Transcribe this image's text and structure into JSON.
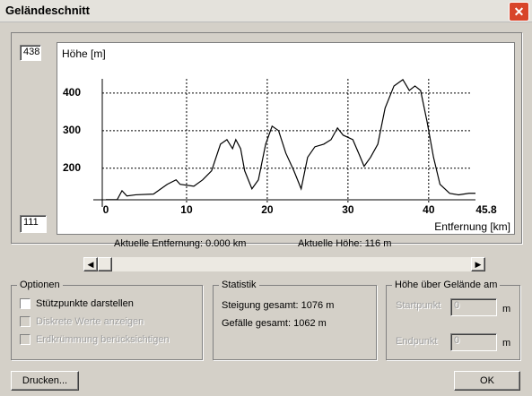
{
  "window": {
    "title": "Geländeschnitt"
  },
  "chart_data": {
    "type": "line",
    "y_label": "Höhe [m]",
    "x_label": "Entfernung [km]",
    "x": [
      0,
      1.4,
      2,
      2.6,
      3.7,
      5.9,
      7.6,
      8.7,
      9.2,
      10.9,
      12,
      13.1,
      14.2,
      15,
      15.7,
      16.1,
      16.7,
      17.2,
      18.1,
      18.9,
      19.8,
      20.6,
      21.4,
      22.3,
      23.3,
      24.2,
      25,
      25.9,
      27,
      27.9,
      28.7,
      29.4,
      30.6,
      31.4,
      32,
      32.8,
      33.7,
      34.6,
      35.7,
      36.8,
      37.6,
      38.3,
      39,
      39.8,
      40.6,
      41.4,
      42.6,
      43.7,
      45,
      45.8
    ],
    "values": [
      116,
      116,
      140,
      126,
      129,
      131,
      157,
      169,
      157,
      152,
      169,
      193,
      264,
      276,
      252,
      276,
      252,
      193,
      145,
      169,
      264,
      312,
      300,
      240,
      193,
      145,
      229,
      257,
      264,
      276,
      307,
      288,
      276,
      236,
      205,
      229,
      264,
      360,
      419,
      436,
      407,
      419,
      407,
      324,
      229,
      157,
      133,
      129,
      133,
      133
    ],
    "color": "#000000",
    "ylim": [
      111,
      438
    ],
    "yticks": [
      200,
      300,
      400
    ],
    "xlim": [
      0,
      45.8
    ],
    "xticks": [
      0,
      10,
      20,
      30,
      40,
      45.8
    ],
    "grid": true
  },
  "status": {
    "distance": "Aktuelle Entfernung: 0.000 km",
    "height": "Aktuelle Höhe: 116 m"
  },
  "options": {
    "title": "Optionen",
    "items": [
      {
        "label": "Stützpunkte darstellen",
        "enabled": true
      },
      {
        "label": "Diskrete Werte anzeigen",
        "enabled": false
      },
      {
        "label": "Erdkrümmung berücksichtigen",
        "enabled": false
      }
    ]
  },
  "statistics": {
    "title": "Statistik",
    "lines": [
      "Steigung gesamt: 1076 m",
      "Gefälle gesamt: 1062 m"
    ]
  },
  "height_above": {
    "title": "Höhe über Gelände am",
    "start_label": "Startpunkt",
    "start_value": "0",
    "end_label": "Endpunkt",
    "end_value": "0",
    "unit": "m"
  },
  "buttons": {
    "print": "Drucken...",
    "ok": "OK"
  }
}
